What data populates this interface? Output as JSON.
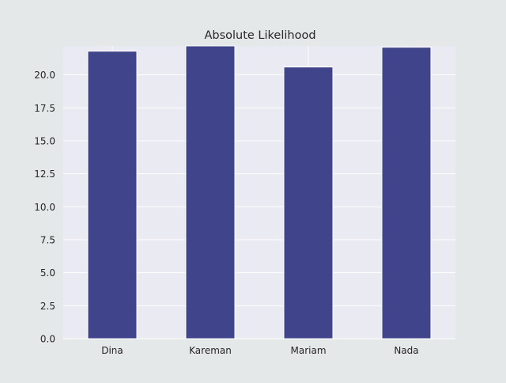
{
  "chart_data": {
    "type": "bar",
    "title": "Absolute Likelihood",
    "xlabel": "",
    "ylabel": "",
    "categories": [
      "Dina",
      "Kareman",
      "Mariam",
      "Nada"
    ],
    "values": [
      21.8,
      22.2,
      20.6,
      22.1
    ],
    "ylim": [
      0,
      22.2
    ],
    "yticks": [
      "0.0",
      "2.5",
      "5.0",
      "7.5",
      "10.0",
      "12.5",
      "15.0",
      "17.5",
      "20.0"
    ],
    "grid": true,
    "legend": "none",
    "colors": {
      "bar": "#40448a",
      "plot_background": "#eaeaf2",
      "figure_background": "#e4e8e8",
      "grid": "#ffffff",
      "text": "#262626"
    }
  }
}
